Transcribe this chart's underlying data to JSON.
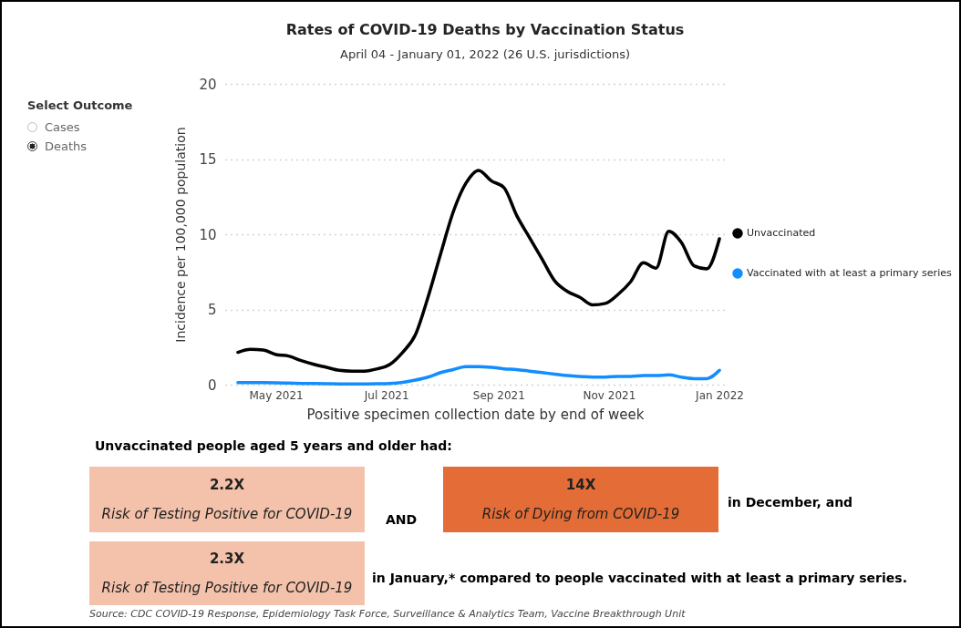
{
  "chart_data": {
    "type": "line",
    "title": "Rates of COVID-19 Deaths by Vaccination Status",
    "subtitle": "April 04 - January 01, 2022 (26 U.S. jurisdictions)",
    "xlabel": "Positive specimen collection date by end of week",
    "ylabel": "Incidence per 100,000 population",
    "x": [
      "2021-04-10",
      "2021-04-17",
      "2021-04-24",
      "2021-05-01",
      "2021-05-08",
      "2021-05-15",
      "2021-05-22",
      "2021-05-29",
      "2021-06-05",
      "2021-06-12",
      "2021-06-19",
      "2021-06-26",
      "2021-07-03",
      "2021-07-10",
      "2021-07-17",
      "2021-07-24",
      "2021-07-31",
      "2021-08-07",
      "2021-08-14",
      "2021-08-21",
      "2021-08-28",
      "2021-09-04",
      "2021-09-11",
      "2021-09-18",
      "2021-09-25",
      "2021-10-02",
      "2021-10-09",
      "2021-10-16",
      "2021-10-23",
      "2021-10-30",
      "2021-11-06",
      "2021-11-13",
      "2021-11-20",
      "2021-11-27",
      "2021-12-04",
      "2021-12-11",
      "2021-12-18",
      "2021-12-25",
      "2022-01-01"
    ],
    "series": [
      {
        "name": "Unvaccinated",
        "color": "#000000",
        "values": [
          2.15,
          2.35,
          2.3,
          2.0,
          1.9,
          1.6,
          1.35,
          1.15,
          0.95,
          0.9,
          0.9,
          1.05,
          1.35,
          2.15,
          3.3,
          5.8,
          8.7,
          11.5,
          13.4,
          14.25,
          13.55,
          13.1,
          11.25,
          9.8,
          8.35,
          6.9,
          6.2,
          5.8,
          5.3,
          5.4,
          6.0,
          6.85,
          8.1,
          7.75,
          10.2,
          9.45,
          7.9,
          7.7,
          9.7
        ]
      },
      {
        "name": "Vaccinated with at least a primary series",
        "color": "#118dff",
        "values": [
          0.13,
          0.13,
          0.13,
          0.12,
          0.1,
          0.08,
          0.07,
          0.06,
          0.05,
          0.05,
          0.05,
          0.06,
          0.08,
          0.15,
          0.3,
          0.5,
          0.8,
          1.0,
          1.2,
          1.2,
          1.15,
          1.05,
          1.0,
          0.9,
          0.8,
          0.7,
          0.6,
          0.55,
          0.5,
          0.5,
          0.55,
          0.55,
          0.6,
          0.6,
          0.65,
          0.5,
          0.4,
          0.4,
          0.95
        ]
      }
    ],
    "xlim": [
      "2021-04-03",
      "2022-01-04"
    ],
    "xticks": [
      {
        "value": "2021-05-01",
        "label": "May 2021"
      },
      {
        "value": "2021-07-01",
        "label": "Jul 2021"
      },
      {
        "value": "2021-09-01",
        "label": "Sep 2021"
      },
      {
        "value": "2021-11-01",
        "label": "Nov 2021"
      },
      {
        "value": "2022-01-01",
        "label": "Jan 2022"
      }
    ],
    "ylim": [
      0,
      20
    ],
    "yticks": [
      0,
      5,
      10,
      15,
      20
    ],
    "grid": "y",
    "legend": "right",
    "marker": "none",
    "line_style": "solid",
    "annotations": [
      "Select Outcome",
      "Cases",
      "Deaths",
      "Unvaccinated people aged 5 years and older had:",
      "2.2X",
      "Risk of Testing Positive for COVID-19",
      "AND",
      "14X",
      "Risk of Dying from COVID-19",
      "in December, and",
      "2.3X",
      "Risk of Testing Positive for COVID-19",
      "in January,* compared to people vaccinated with at least a primary series.",
      "Source: CDC COVID-19 Response, Epidemiology Task Force, Surveillance & Analytics Team, Vaccine Breakthrough Unit"
    ]
  }
}
